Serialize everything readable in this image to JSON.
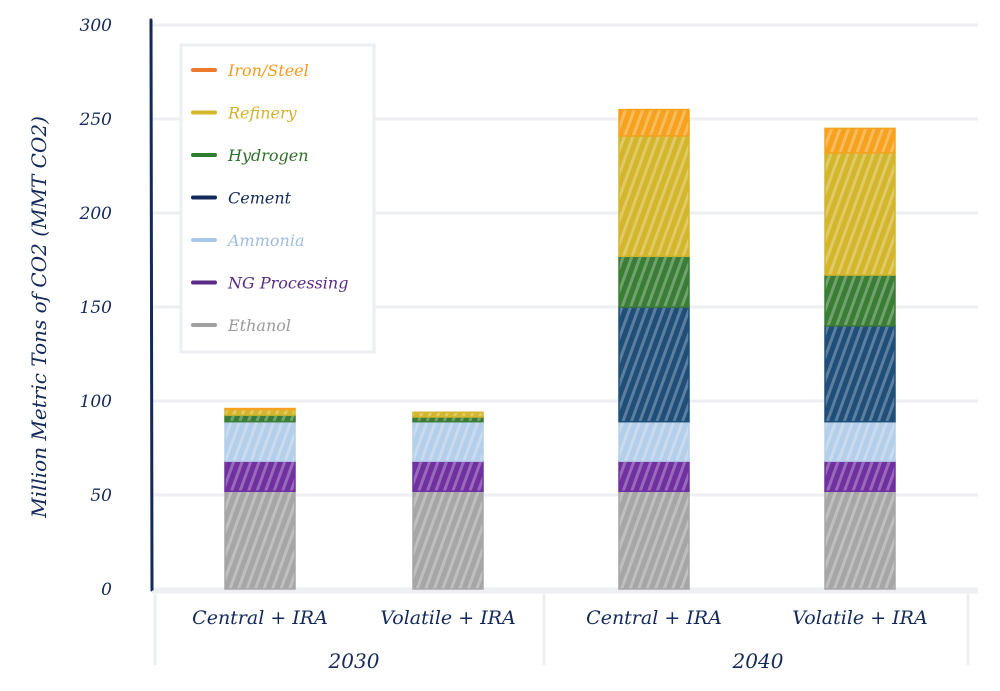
{
  "chart_data": {
    "type": "bar",
    "stacked": true,
    "title": "",
    "xlabel": "",
    "ylabel": "Million Metric Tons of CO2 (MMT CO2)",
    "ylim": [
      0,
      300
    ],
    "yticks": [
      0,
      50,
      100,
      150,
      200,
      250,
      300
    ],
    "grid": true,
    "legend_position": "top-left",
    "categories": [
      "Central + IRA",
      "Volatile + IRA",
      "Central + IRA",
      "Volatile + IRA"
    ],
    "groups": [
      {
        "label": "2030",
        "categories": [
          "Central + IRA",
          "Volatile + IRA"
        ]
      },
      {
        "label": "2040",
        "categories": [
          "Central + IRA",
          "Volatile + IRA"
        ]
      }
    ],
    "series": [
      {
        "name": "Ethanol",
        "color": "#a6a6a6",
        "values": [
          52,
          52,
          52,
          52
        ]
      },
      {
        "name": "NG Processing",
        "color": "#7030a0",
        "values": [
          16,
          16,
          16,
          16
        ]
      },
      {
        "name": "Ammonia",
        "color": "#b4cfe9",
        "values": [
          21,
          21,
          21,
          21
        ]
      },
      {
        "name": "Cement",
        "color": "#1f4e79",
        "values": [
          0,
          0,
          61,
          51
        ]
      },
      {
        "name": "Hydrogen",
        "color": "#3a7d35",
        "values": [
          3.5,
          2.5,
          27,
          27
        ]
      },
      {
        "name": "Refinery",
        "color": "#d4b62c",
        "values": [
          3,
          2.5,
          64,
          65
        ]
      },
      {
        "name": "Iron/Steel",
        "color": "#f6a21e",
        "values": [
          0.5,
          0,
          14,
          13
        ]
      }
    ],
    "legend_order": [
      "Iron/Steel",
      "Refinery",
      "Hydrogen",
      "Cement",
      "Ammonia",
      "NG Processing",
      "Ethanol"
    ],
    "legend_text_colors": {
      "Iron/Steel": "#f39a1f",
      "Refinery": "#d3b12b",
      "Hydrogen": "#2e6e2a",
      "Cement": "#13295b",
      "Ammonia": "#9dbde0",
      "NG Processing": "#5a2a86",
      "Ethanol": "#9a9a9a"
    },
    "legend_line_colors": {
      "Iron/Steel": "#ee7a30",
      "Refinery": "#d4b62c",
      "Hydrogen": "#2e7d32",
      "Cement": "#13295b",
      "Ammonia": "#a9c7e8",
      "NG Processing": "#5a2a86",
      "Ethanol": "#a0a0a0"
    }
  },
  "colors": {
    "axis": "#13295b",
    "grid": "#eeeff3",
    "text": "#13295b"
  }
}
